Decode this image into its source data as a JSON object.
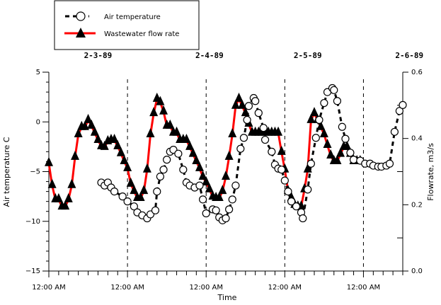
{
  "chart_data": {
    "type": "line",
    "title": "",
    "xlabel": "Time",
    "ylabel": "Air temperature C",
    "y2label": "Flowrate, m3/s",
    "x_unit": "hours since 2-3-89 12:00 AM",
    "xlim": [
      0,
      108
    ],
    "ylim": [
      -15,
      5
    ],
    "y2lim": [
      0.0,
      0.6
    ],
    "x_major_step_hours": 24,
    "x_minor_step_hours": 3,
    "x_tick_labels": [
      "12:00 AM",
      "12:00 AM",
      "12:00 AM",
      "12:00 AM",
      "12:00 AM"
    ],
    "y_ticks": [
      5,
      0,
      -5,
      -10,
      -15
    ],
    "y_tick_labels": [
      "5",
      "0",
      "−5",
      "−10",
      "−15"
    ],
    "y2_ticks": [
      0.6,
      0.4,
      0.2,
      0.0
    ],
    "y2_tick_labels": [
      "0.6",
      "0.4",
      "0.2",
      "0.0"
    ],
    "date_labels": [
      {
        "label": "2-3-89",
        "hour": 15
      },
      {
        "label": "2-4-89",
        "hour": 49
      },
      {
        "label": "2-5-89",
        "hour": 79
      },
      {
        "label": "2-6-89",
        "hour": 110
      }
    ],
    "day_dividers_hours": [
      24,
      48,
      72,
      96
    ],
    "grid": false,
    "legend": {
      "position": "top-left",
      "entries": [
        {
          "name": "Air temperature",
          "style": "dashed-black-circle"
        },
        {
          "name": "Wastewater flow rate",
          "style": "solid-red-triangle"
        }
      ]
    },
    "series": [
      {
        "name": "Wastewater flow rate",
        "axis": "right",
        "color": "#ff0000",
        "marker": "triangle",
        "x": [
          0,
          1,
          2,
          3,
          4,
          5,
          6,
          7,
          8,
          9,
          10,
          11,
          12,
          13,
          14,
          15,
          16,
          17,
          18,
          19,
          20,
          21,
          22,
          23,
          24,
          25,
          26,
          27,
          28,
          29,
          30,
          31,
          32,
          33,
          34,
          35,
          36,
          37,
          38,
          39,
          40,
          41,
          42,
          43,
          44,
          45,
          46,
          47,
          48,
          49,
          50,
          51,
          52,
          53,
          54,
          55,
          56,
          57,
          58,
          59,
          60,
          61,
          62,
          63,
          64,
          65,
          66,
          67,
          68,
          69,
          70,
          71,
          72,
          73,
          74,
          75,
          76,
          77,
          78,
          79,
          80,
          81,
          82,
          83,
          84,
          85,
          86,
          87,
          88,
          89,
          90,
          91,
          92,
          93,
          94,
          95
        ],
        "values": [
          0.325,
          0.259,
          0.216,
          0.216,
          0.194,
          0.194,
          0.216,
          0.259,
          0.344,
          0.412,
          0.434,
          0.434,
          0.455,
          0.438,
          0.417,
          0.395,
          0.376,
          0.374,
          0.391,
          0.395,
          0.395,
          0.376,
          0.355,
          0.331,
          0.31,
          0.263,
          0.241,
          0.22,
          0.22,
          0.241,
          0.306,
          0.412,
          0.476,
          0.519,
          0.509,
          0.481,
          0.438,
          0.438,
          0.417,
          0.417,
          0.395,
          0.395,
          0.395,
          0.374,
          0.353,
          0.331,
          0.31,
          0.284,
          0.267,
          0.246,
          0.224,
          0.22,
          0.22,
          0.241,
          0.284,
          0.344,
          0.412,
          0.498,
          0.519,
          0.498,
          0.476,
          0.444,
          0.417,
          0.417,
          0.417,
          0.417,
          0.417,
          0.417,
          0.417,
          0.417,
          0.417,
          0.359,
          0.306,
          0.241,
          0.22,
          0.199,
          0.194,
          0.194,
          0.246,
          0.306,
          0.455,
          0.476,
          0.455,
          0.434,
          0.412,
          0.38,
          0.348,
          0.331,
          0.331,
          0.353,
          0.374,
          0.374,
          0.353,
          0.331,
          0.331,
          0.331
        ]
      },
      {
        "name": "Air temperature",
        "axis": "left",
        "color": "#000000",
        "marker": "open-circle",
        "x": [
          16,
          17,
          18,
          19,
          20,
          22.5,
          24,
          26,
          27,
          28.5,
          30,
          31,
          32.5,
          33,
          34,
          35,
          36,
          37,
          38,
          39.5,
          41,
          42,
          43,
          44.5,
          46,
          47,
          48,
          50,
          51,
          52,
          53,
          54,
          55,
          56,
          57,
          58.5,
          59.5,
          60.5,
          61,
          62.5,
          63,
          64,
          65.5,
          66,
          68,
          69,
          70,
          71,
          72,
          73,
          74,
          75.5,
          77,
          77.5,
          79,
          80,
          81.5,
          82.5,
          84,
          85,
          86.5,
          87,
          88,
          89.5,
          90.5,
          92,
          93,
          95,
          96.5,
          98,
          99,
          100.5,
          101.5,
          103,
          104,
          105.5,
          107,
          108
        ],
        "values": [
          -6.1,
          -6.4,
          -6.1,
          -6.6,
          -7.0,
          -7.5,
          -8.0,
          -8.5,
          -9.1,
          -9.4,
          -9.7,
          -9.3,
          -8.9,
          -7.0,
          -5.5,
          -4.8,
          -3.8,
          -3.0,
          -2.8,
          -3.2,
          -4.8,
          -6.1,
          -6.4,
          -6.6,
          -6.4,
          -7.8,
          -9.2,
          -8.8,
          -8.9,
          -9.6,
          -9.9,
          -9.7,
          -8.8,
          -7.8,
          -6.4,
          -2.7,
          -1.6,
          0.2,
          1.6,
          2.4,
          2.1,
          0.9,
          -0.6,
          -1.8,
          -3.0,
          -4.3,
          -4.7,
          -4.8,
          -5.9,
          -7.0,
          -8.0,
          -8.5,
          -9.1,
          -9.7,
          -6.8,
          -4.2,
          -1.6,
          0.2,
          1.9,
          3.0,
          3.4,
          3.2,
          2.1,
          -0.5,
          -1.7,
          -3.1,
          -3.8,
          -3.9,
          -4.2,
          -4.2,
          -4.4,
          -4.5,
          -4.5,
          -4.4,
          -4.2,
          -1.0,
          1.1,
          1.7
        ]
      }
    ]
  }
}
